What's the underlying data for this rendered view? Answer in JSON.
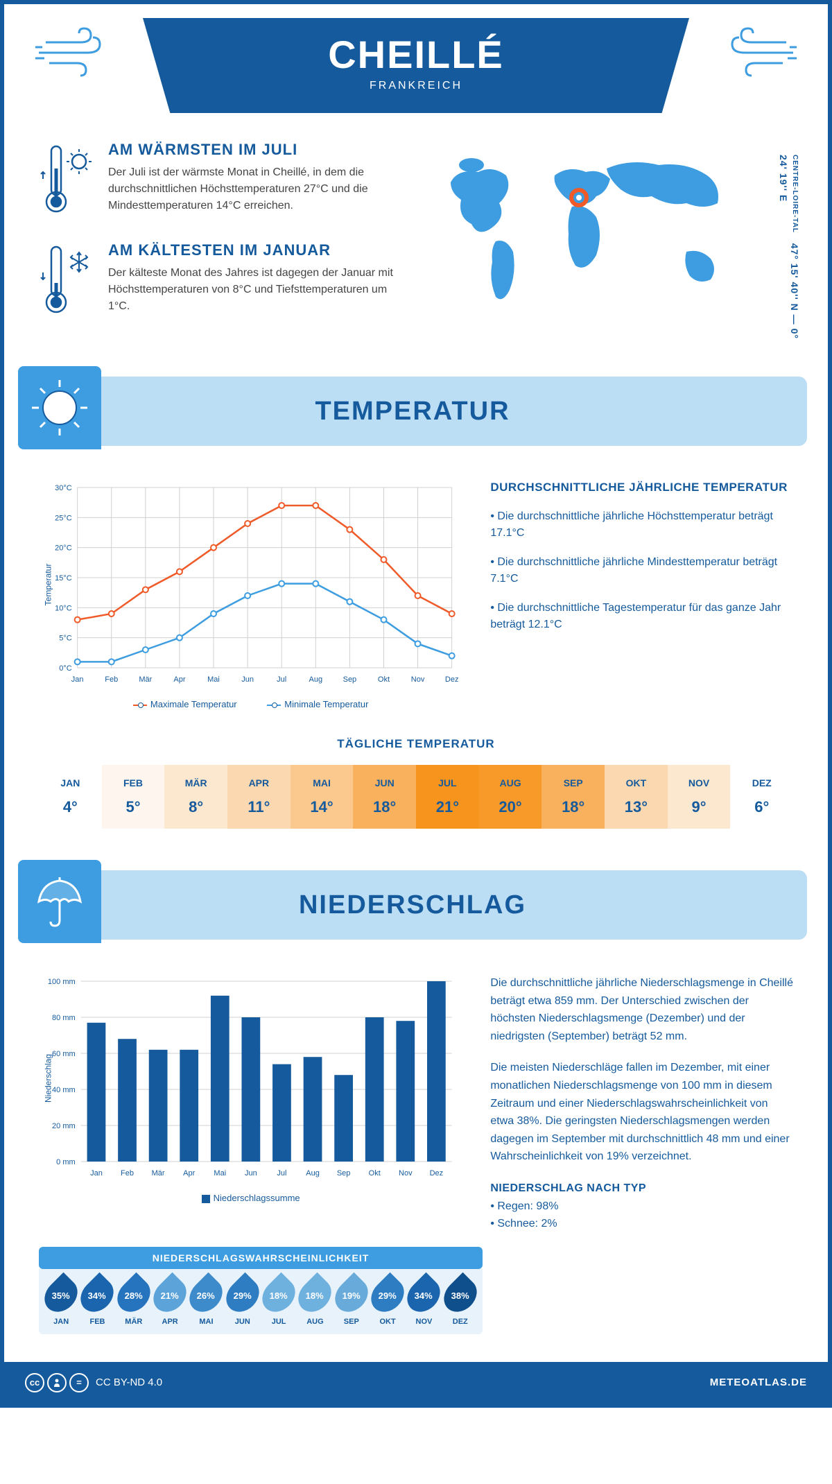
{
  "header": {
    "title": "CHEILLÉ",
    "subtitle": "FRANKREICH"
  },
  "coords": "47° 15' 40'' N — 0° 24' 19'' E",
  "region": "CENTRE-LOIRE-TAL",
  "facts": {
    "warm": {
      "title": "AM WÄRMSTEN IM JULI",
      "text": "Der Juli ist der wärmste Monat in Cheillé, in dem die durchschnittlichen Höchsttemperaturen 27°C und die Mindesttemperaturen 14°C erreichen."
    },
    "cold": {
      "title": "AM KÄLTESTEN IM JANUAR",
      "text": "Der kälteste Monat des Jahres ist dagegen der Januar mit Höchsttemperaturen von 8°C und Tiefsttemperaturen um 1°C."
    }
  },
  "sections": {
    "temperature": "TEMPERATUR",
    "precipitation": "NIEDERSCHLAG"
  },
  "tempChart": {
    "type": "line",
    "months": [
      "Jan",
      "Feb",
      "Mär",
      "Apr",
      "Mai",
      "Jun",
      "Jul",
      "Aug",
      "Sep",
      "Okt",
      "Nov",
      "Dez"
    ],
    "max": [
      8,
      9,
      13,
      16,
      20,
      24,
      27,
      27,
      23,
      18,
      12,
      9
    ],
    "min": [
      1,
      1,
      3,
      5,
      9,
      12,
      14,
      14,
      11,
      8,
      4,
      2
    ],
    "maxColor": "#ef5a28",
    "minColor": "#3d9de0",
    "ylim": [
      0,
      30
    ],
    "ytick": 5,
    "ylabel": "Temperatur",
    "gridColor": "#d0d0d0",
    "legendMax": "Maximale Temperatur",
    "legendMin": "Minimale Temperatur"
  },
  "tempInfo": {
    "title": "DURCHSCHNITTLICHE JÄHRLICHE TEMPERATUR",
    "items": [
      "Die durchschnittliche jährliche Höchsttemperatur beträgt 17.1°C",
      "Die durchschnittliche jährliche Mindesttemperatur beträgt 7.1°C",
      "Die durchschnittliche Tagestemperatur für das ganze Jahr beträgt 12.1°C"
    ]
  },
  "dailyTemp": {
    "title": "TÄGLICHE TEMPERATUR",
    "months": [
      "JAN",
      "FEB",
      "MÄR",
      "APR",
      "MAI",
      "JUN",
      "JUL",
      "AUG",
      "SEP",
      "OKT",
      "NOV",
      "DEZ"
    ],
    "values": [
      "4°",
      "5°",
      "8°",
      "11°",
      "14°",
      "18°",
      "21°",
      "20°",
      "18°",
      "13°",
      "9°",
      "6°"
    ],
    "colors": [
      "#ffffff",
      "#fef6ee",
      "#fce7cf",
      "#fbd8af",
      "#fbc88e",
      "#f9b15e",
      "#f7941d",
      "#f89a2a",
      "#f9b15e",
      "#fbd8af",
      "#fce7cf",
      "#ffffff"
    ]
  },
  "precipChart": {
    "type": "bar",
    "months": [
      "Jan",
      "Feb",
      "Mär",
      "Apr",
      "Mai",
      "Jun",
      "Jul",
      "Aug",
      "Sep",
      "Okt",
      "Nov",
      "Dez"
    ],
    "values": [
      77,
      68,
      62,
      62,
      92,
      80,
      54,
      58,
      48,
      80,
      78,
      100
    ],
    "ylim": [
      0,
      100
    ],
    "ytick": 20,
    "ylabel": "Niederschlag",
    "barColor": "#155a9c",
    "gridColor": "#d0d0d0",
    "legend": "Niederschlagssumme",
    "unit": "mm"
  },
  "precipInfo": {
    "p1": "Die durchschnittliche jährliche Niederschlagsmenge in Cheillé beträgt etwa 859 mm. Der Unterschied zwischen der höchsten Niederschlagsmenge (Dezember) und der niedrigsten (September) beträgt 52 mm.",
    "p2": "Die meisten Niederschläge fallen im Dezember, mit einer monatlichen Niederschlagsmenge von 100 mm in diesem Zeitraum und einer Niederschlagswahrscheinlichkeit von etwa 38%. Die geringsten Niederschlagsmengen werden dagegen im September mit durchschnittlich 48 mm und einer Wahrscheinlichkeit von 19% verzeichnet.",
    "typeTitle": "NIEDERSCHLAG NACH TYP",
    "types": [
      "Regen: 98%",
      "Schnee: 2%"
    ]
  },
  "probability": {
    "title": "NIEDERSCHLAGSWAHRSCHEINLICHKEIT",
    "months": [
      "JAN",
      "FEB",
      "MÄR",
      "APR",
      "MAI",
      "JUN",
      "JUL",
      "AUG",
      "SEP",
      "OKT",
      "NOV",
      "DEZ"
    ],
    "values": [
      "35%",
      "34%",
      "28%",
      "21%",
      "26%",
      "29%",
      "18%",
      "18%",
      "19%",
      "29%",
      "34%",
      "38%"
    ],
    "colors": [
      "#155a9c",
      "#1a65ad",
      "#2673be",
      "#5ba3d8",
      "#3d8bcb",
      "#2e7dc2",
      "#6eb0de",
      "#6eb0de",
      "#68abdb",
      "#2e7dc2",
      "#1a65ad",
      "#0f4f8c"
    ]
  },
  "footer": {
    "license": "CC BY-ND 4.0",
    "site": "METEOATLAS.DE"
  },
  "colors": {
    "primary": "#155a9c",
    "lightBlue": "#bcdef5",
    "midBlue": "#3d9de0"
  }
}
